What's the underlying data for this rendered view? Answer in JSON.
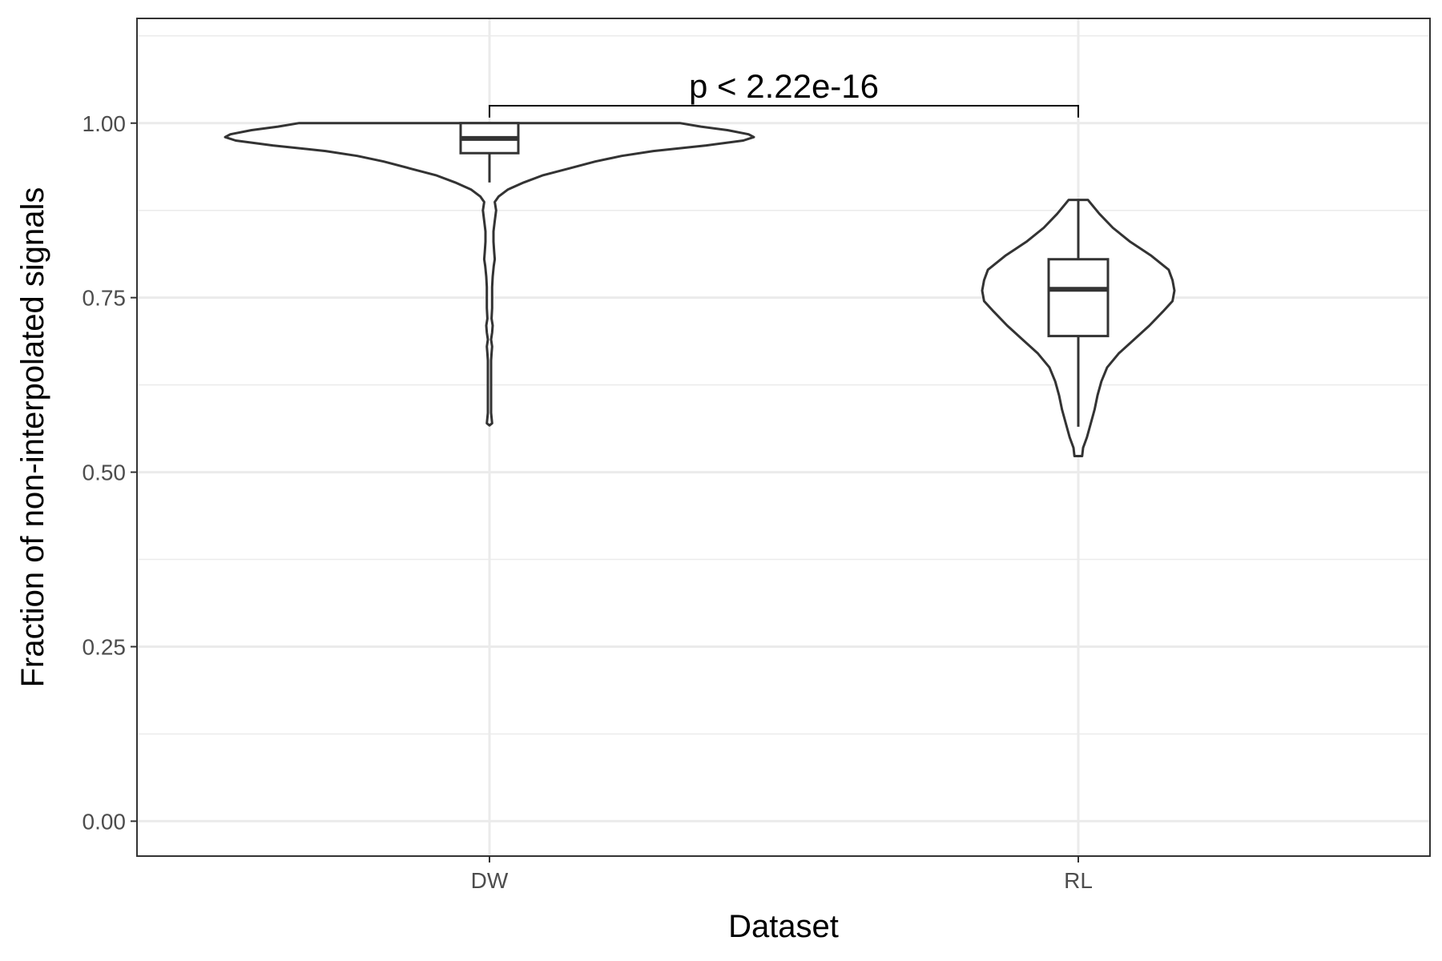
{
  "chart_data": {
    "type": "violin",
    "title": "",
    "xlabel": "Dataset",
    "ylabel": "Fraction of non-interpolated signals",
    "categories": [
      "DW",
      "RL"
    ],
    "ylim": [
      -0.05,
      1.15
    ],
    "yticks": [
      0.0,
      0.25,
      0.5,
      0.75,
      1.0
    ],
    "ytick_labels": [
      "0.00",
      "0.25",
      "0.50",
      "0.75",
      "1.00"
    ],
    "grid": true,
    "legend": "none",
    "colors": {
      "outline": "#333333",
      "grid": "#ebebeb",
      "panel_border": "#333333",
      "tick_text": "#4d4d4d"
    },
    "series": [
      {
        "category": "DW",
        "box": {
          "whisker_low": 0.915,
          "q1": 0.957,
          "median": 0.978,
          "q3": 1.0,
          "whisker_high": 1.0
        },
        "violin": {
          "y": [
            1.0,
            0.995,
            0.99,
            0.984,
            0.98,
            0.975,
            0.968,
            0.96,
            0.953,
            0.945,
            0.935,
            0.925,
            0.915,
            0.905,
            0.895,
            0.887,
            0.875,
            0.86,
            0.845,
            0.83,
            0.815,
            0.805,
            0.795,
            0.78,
            0.765,
            0.75,
            0.735,
            0.72,
            0.71,
            0.7,
            0.69,
            0.68,
            0.67,
            0.66,
            0.64,
            0.62,
            0.6,
            0.585,
            0.57,
            0.567
          ],
          "width": [
            0.72,
            0.8,
            0.9,
            0.98,
            1.0,
            0.96,
            0.82,
            0.62,
            0.5,
            0.4,
            0.3,
            0.2,
            0.13,
            0.07,
            0.035,
            0.02,
            0.025,
            0.02,
            0.015,
            0.015,
            0.018,
            0.02,
            0.016,
            0.012,
            0.01,
            0.01,
            0.01,
            0.008,
            0.012,
            0.01,
            0.006,
            0.01,
            0.008,
            0.006,
            0.006,
            0.006,
            0.006,
            0.006,
            0.01,
            0.0
          ]
        }
      },
      {
        "category": "RL",
        "box": {
          "whisker_low": 0.565,
          "q1": 0.695,
          "median": 0.762,
          "q3": 0.805,
          "whisker_high": 0.89
        },
        "violin": {
          "y": [
            0.89,
            0.87,
            0.85,
            0.83,
            0.81,
            0.79,
            0.775,
            0.76,
            0.745,
            0.73,
            0.71,
            0.69,
            0.67,
            0.65,
            0.63,
            0.61,
            0.59,
            0.57,
            0.55,
            0.535,
            0.523
          ],
          "width": [
            0.05,
            0.11,
            0.18,
            0.27,
            0.38,
            0.47,
            0.49,
            0.5,
            0.49,
            0.44,
            0.37,
            0.29,
            0.21,
            0.15,
            0.12,
            0.1,
            0.085,
            0.065,
            0.045,
            0.025,
            0.02
          ]
        }
      }
    ],
    "annotation": {
      "text": "p < 2.22e-16",
      "bracket_y": 1.025,
      "bracket_drop": 0.017,
      "from": "DW",
      "to": "RL"
    }
  }
}
